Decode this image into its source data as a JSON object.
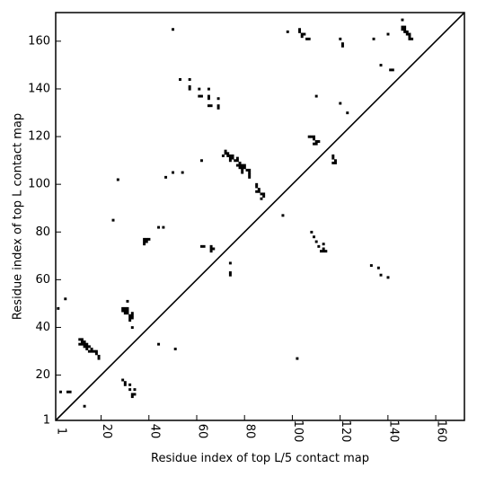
{
  "chart_data": {
    "type": "scatter",
    "title": "",
    "xlabel": "Residue index of top L/5 contact map",
    "ylabel": "Residue index of top L contact map",
    "xlim": [
      1,
      172
    ],
    "ylim": [
      1,
      172
    ],
    "x_ticks": [
      1,
      20,
      40,
      60,
      80,
      100,
      120,
      140,
      160
    ],
    "y_ticks": [
      1,
      20,
      40,
      60,
      80,
      100,
      120,
      140,
      160
    ],
    "grid": false,
    "marker": "square",
    "diagonal": true,
    "series": [
      {
        "values": [
          [
            2,
            48
          ],
          [
            5,
            52
          ],
          [
            3,
            13
          ],
          [
            6,
            13
          ],
          [
            7,
            13
          ],
          [
            13,
            7
          ],
          [
            11,
            35
          ],
          [
            12,
            35
          ],
          [
            12,
            34
          ],
          [
            13,
            34
          ],
          [
            11,
            33
          ],
          [
            12,
            33
          ],
          [
            13,
            33
          ],
          [
            14,
            33
          ],
          [
            13,
            32
          ],
          [
            14,
            32
          ],
          [
            15,
            32
          ],
          [
            14,
            31
          ],
          [
            16,
            31
          ],
          [
            15,
            30
          ],
          [
            16,
            30
          ],
          [
            17,
            30
          ],
          [
            18,
            30
          ],
          [
            18,
            29
          ],
          [
            19,
            28
          ],
          [
            19,
            27
          ],
          [
            29,
            48
          ],
          [
            30,
            48
          ],
          [
            31,
            48
          ],
          [
            29,
            47
          ],
          [
            30,
            47
          ],
          [
            31,
            47
          ],
          [
            30,
            46
          ],
          [
            31,
            46
          ],
          [
            33,
            46
          ],
          [
            32,
            45
          ],
          [
            33,
            45
          ],
          [
            32,
            44
          ],
          [
            33,
            44
          ],
          [
            32,
            43
          ],
          [
            31,
            51
          ],
          [
            33,
            40
          ],
          [
            29,
            18
          ],
          [
            30,
            17
          ],
          [
            30,
            16
          ],
          [
            32,
            16
          ],
          [
            32,
            14
          ],
          [
            34,
            14
          ],
          [
            33,
            12
          ],
          [
            34,
            12
          ],
          [
            33,
            11
          ],
          [
            27,
            102
          ],
          [
            25,
            85
          ],
          [
            38,
            77
          ],
          [
            39,
            77
          ],
          [
            40,
            77
          ],
          [
            38,
            76
          ],
          [
            39,
            76
          ],
          [
            38,
            75
          ],
          [
            44,
            82
          ],
          [
            46,
            82
          ],
          [
            44,
            33
          ],
          [
            51,
            31
          ],
          [
            47,
            103
          ],
          [
            50,
            105
          ],
          [
            54,
            105
          ],
          [
            50,
            165
          ],
          [
            53,
            144
          ],
          [
            57,
            144
          ],
          [
            57,
            141
          ],
          [
            57,
            140
          ],
          [
            61,
            140
          ],
          [
            61,
            137
          ],
          [
            62,
            137
          ],
          [
            65,
            140
          ],
          [
            65,
            137
          ],
          [
            65,
            136
          ],
          [
            69,
            136
          ],
          [
            65,
            133
          ],
          [
            66,
            133
          ],
          [
            69,
            133
          ],
          [
            69,
            132
          ],
          [
            62,
            110
          ],
          [
            62,
            74
          ],
          [
            63,
            74
          ],
          [
            66,
            74
          ],
          [
            66,
            73
          ],
          [
            67,
            73
          ],
          [
            66,
            72
          ],
          [
            74,
            67
          ],
          [
            74,
            63
          ],
          [
            74,
            62
          ],
          [
            71,
            112
          ],
          [
            72,
            114
          ],
          [
            72,
            113
          ],
          [
            73,
            113
          ],
          [
            73,
            112
          ],
          [
            74,
            112
          ],
          [
            75,
            112
          ],
          [
            74,
            111
          ],
          [
            75,
            111
          ],
          [
            74,
            110
          ],
          [
            77,
            111
          ],
          [
            76,
            110
          ],
          [
            77,
            110
          ],
          [
            78,
            109
          ],
          [
            77,
            108
          ],
          [
            78,
            108
          ],
          [
            79,
            108
          ],
          [
            80,
            108
          ],
          [
            78,
            107
          ],
          [
            79,
            107
          ],
          [
            80,
            107
          ],
          [
            79,
            106
          ],
          [
            81,
            106
          ],
          [
            82,
            106
          ],
          [
            79,
            105
          ],
          [
            82,
            105
          ],
          [
            82,
            104
          ],
          [
            82,
            103
          ],
          [
            85,
            100
          ],
          [
            85,
            99
          ],
          [
            86,
            98
          ],
          [
            85,
            97
          ],
          [
            86,
            97
          ],
          [
            87,
            96
          ],
          [
            88,
            96
          ],
          [
            88,
            95
          ],
          [
            87,
            94
          ],
          [
            96,
            87
          ],
          [
            98,
            164
          ],
          [
            103,
            165
          ],
          [
            103,
            164
          ],
          [
            104,
            163
          ],
          [
            105,
            163
          ],
          [
            104,
            162
          ],
          [
            106,
            161
          ],
          [
            107,
            161
          ],
          [
            107,
            120
          ],
          [
            108,
            120
          ],
          [
            109,
            120
          ],
          [
            109,
            119
          ],
          [
            110,
            118
          ],
          [
            111,
            118
          ],
          [
            109,
            117
          ],
          [
            110,
            117
          ],
          [
            110,
            137
          ],
          [
            108,
            80
          ],
          [
            109,
            78
          ],
          [
            110,
            76
          ],
          [
            111,
            74
          ],
          [
            113,
            75
          ],
          [
            113,
            73
          ],
          [
            112,
            72
          ],
          [
            113,
            72
          ],
          [
            114,
            72
          ],
          [
            102,
            27
          ],
          [
            117,
            112
          ],
          [
            117,
            111
          ],
          [
            118,
            110
          ],
          [
            117,
            109
          ],
          [
            118,
            109
          ],
          [
            120,
            161
          ],
          [
            121,
            159
          ],
          [
            121,
            158
          ],
          [
            120,
            134
          ],
          [
            123,
            130
          ],
          [
            134,
            161
          ],
          [
            140,
            163
          ],
          [
            146,
            169
          ],
          [
            146,
            166
          ],
          [
            147,
            166
          ],
          [
            146,
            165
          ],
          [
            147,
            165
          ],
          [
            147,
            164
          ],
          [
            148,
            164
          ],
          [
            148,
            163
          ],
          [
            149,
            163
          ],
          [
            149,
            162
          ],
          [
            149,
            161
          ],
          [
            150,
            161
          ],
          [
            137,
            150
          ],
          [
            141,
            148
          ],
          [
            142,
            148
          ],
          [
            133,
            66
          ],
          [
            136,
            65
          ],
          [
            137,
            62
          ],
          [
            140,
            61
          ]
        ]
      }
    ]
  }
}
